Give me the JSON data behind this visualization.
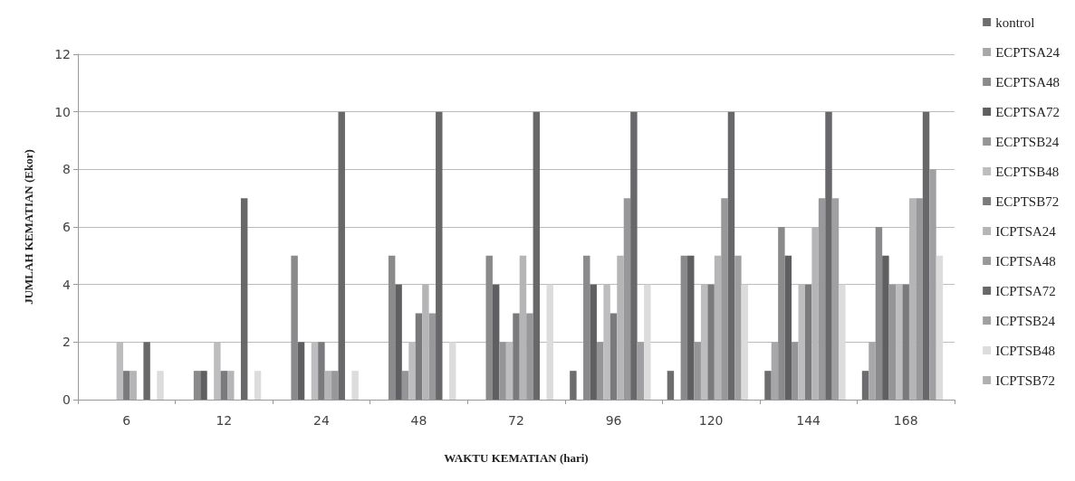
{
  "chart_data": {
    "type": "bar",
    "xlabel": "WAKTU KEMATIAN (hari)",
    "ylabel": "JUMLAH KEMATIAN (Ekor)",
    "categories": [
      "6",
      "12",
      "24",
      "48",
      "72",
      "96",
      "120",
      "144",
      "168"
    ],
    "ylim": [
      0,
      12
    ],
    "yticks": [
      0,
      2,
      4,
      6,
      8,
      10,
      12
    ],
    "grid": "y",
    "legend": "right",
    "series": [
      {
        "name": "kontrol",
        "color": "#6d6d70",
        "values": [
          0,
          0,
          0,
          0,
          0,
          1,
          1,
          1,
          1
        ]
      },
      {
        "name": "ECPTSA24",
        "color": "#a7a7a9",
        "values": [
          0,
          0,
          0,
          0,
          0,
          0,
          0,
          2,
          2
        ]
      },
      {
        "name": "ECPTSA48",
        "color": "#8a8a8d",
        "values": [
          0,
          1,
          5,
          5,
          5,
          5,
          5,
          6,
          6
        ]
      },
      {
        "name": "ECPTSA72",
        "color": "#5f5f62",
        "values": [
          0,
          1,
          2,
          4,
          4,
          4,
          5,
          5,
          5
        ]
      },
      {
        "name": "ECPTSB24",
        "color": "#959598",
        "values": [
          0,
          0,
          0,
          1,
          2,
          2,
          2,
          2,
          4
        ]
      },
      {
        "name": "ECPTSB48",
        "color": "#bdbdbf",
        "values": [
          2,
          2,
          2,
          2,
          2,
          4,
          4,
          4,
          4
        ]
      },
      {
        "name": "ECPTSB72",
        "color": "#7a7a7d",
        "values": [
          1,
          1,
          2,
          3,
          3,
          3,
          4,
          4,
          4
        ]
      },
      {
        "name": "ICPTSA24",
        "color": "#b5b5b7",
        "values": [
          1,
          1,
          1,
          4,
          5,
          5,
          5,
          6,
          7
        ]
      },
      {
        "name": "ICPTSA48",
        "color": "#98989b",
        "values": [
          0,
          0,
          1,
          3,
          3,
          7,
          7,
          7,
          7
        ]
      },
      {
        "name": "ICPTSA72",
        "color": "#68686b",
        "values": [
          2,
          7,
          10,
          10,
          10,
          10,
          10,
          10,
          10
        ]
      },
      {
        "name": "ICPTSB24",
        "color": "#a0a0a3",
        "values": [
          0,
          0,
          0,
          0,
          0,
          2,
          5,
          7,
          8
        ]
      },
      {
        "name": "ICPTSB48",
        "color": "#dcdcdd",
        "values": [
          1,
          1,
          1,
          2,
          4,
          4,
          4,
          4,
          5
        ]
      },
      {
        "name": "ICPTSB72",
        "color": "#b0b0b2",
        "values": [
          0,
          0,
          0,
          0,
          0,
          0,
          0,
          0,
          0
        ]
      }
    ]
  }
}
